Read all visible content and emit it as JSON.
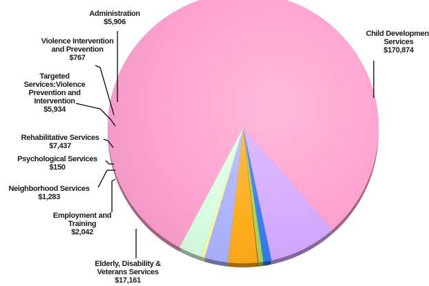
{
  "chart_data": {
    "type": "pie",
    "title": "",
    "legend": "none",
    "slices": [
      {
        "label": [
          "Child Development",
          "Services"
        ],
        "value_label": "$170,874",
        "value": 170874,
        "color": "#ff9fce"
      },
      {
        "label": [
          "Elderly, Disability &",
          "Veterans Services"
        ],
        "value_label": "$17,161",
        "value": 17161,
        "color": "#d3a7ff"
      },
      {
        "label": [
          "Employment and",
          "Training"
        ],
        "value_label": "$2,042",
        "value": 2042,
        "color": "#2f78f0"
      },
      {
        "label": [
          "Neighborhood Services"
        ],
        "value_label": "$1,283",
        "value": 1283,
        "color": "#9fd84a"
      },
      {
        "label": [
          "Psychological Services"
        ],
        "value_label": "$150",
        "value": 150,
        "color": "#ff1f1f"
      },
      {
        "label": [
          "Rehabilitative Services"
        ],
        "value_label": "$7,437",
        "value": 7437,
        "color": "#ffaa14"
      },
      {
        "label": [
          "Targeted",
          "Services:Violence",
          "Prevention and",
          "Intervention"
        ],
        "value_label": "$5,934",
        "value": 5934,
        "color": "#aab2ff"
      },
      {
        "label": [
          "Violence Intervention",
          "and Prevention"
        ],
        "value_label": "$767",
        "value": 767,
        "color": "#ffff99"
      },
      {
        "label": [
          "Administration"
        ],
        "value_label": "$5,906",
        "value": 5906,
        "color": "#d9ffe2"
      }
    ]
  }
}
